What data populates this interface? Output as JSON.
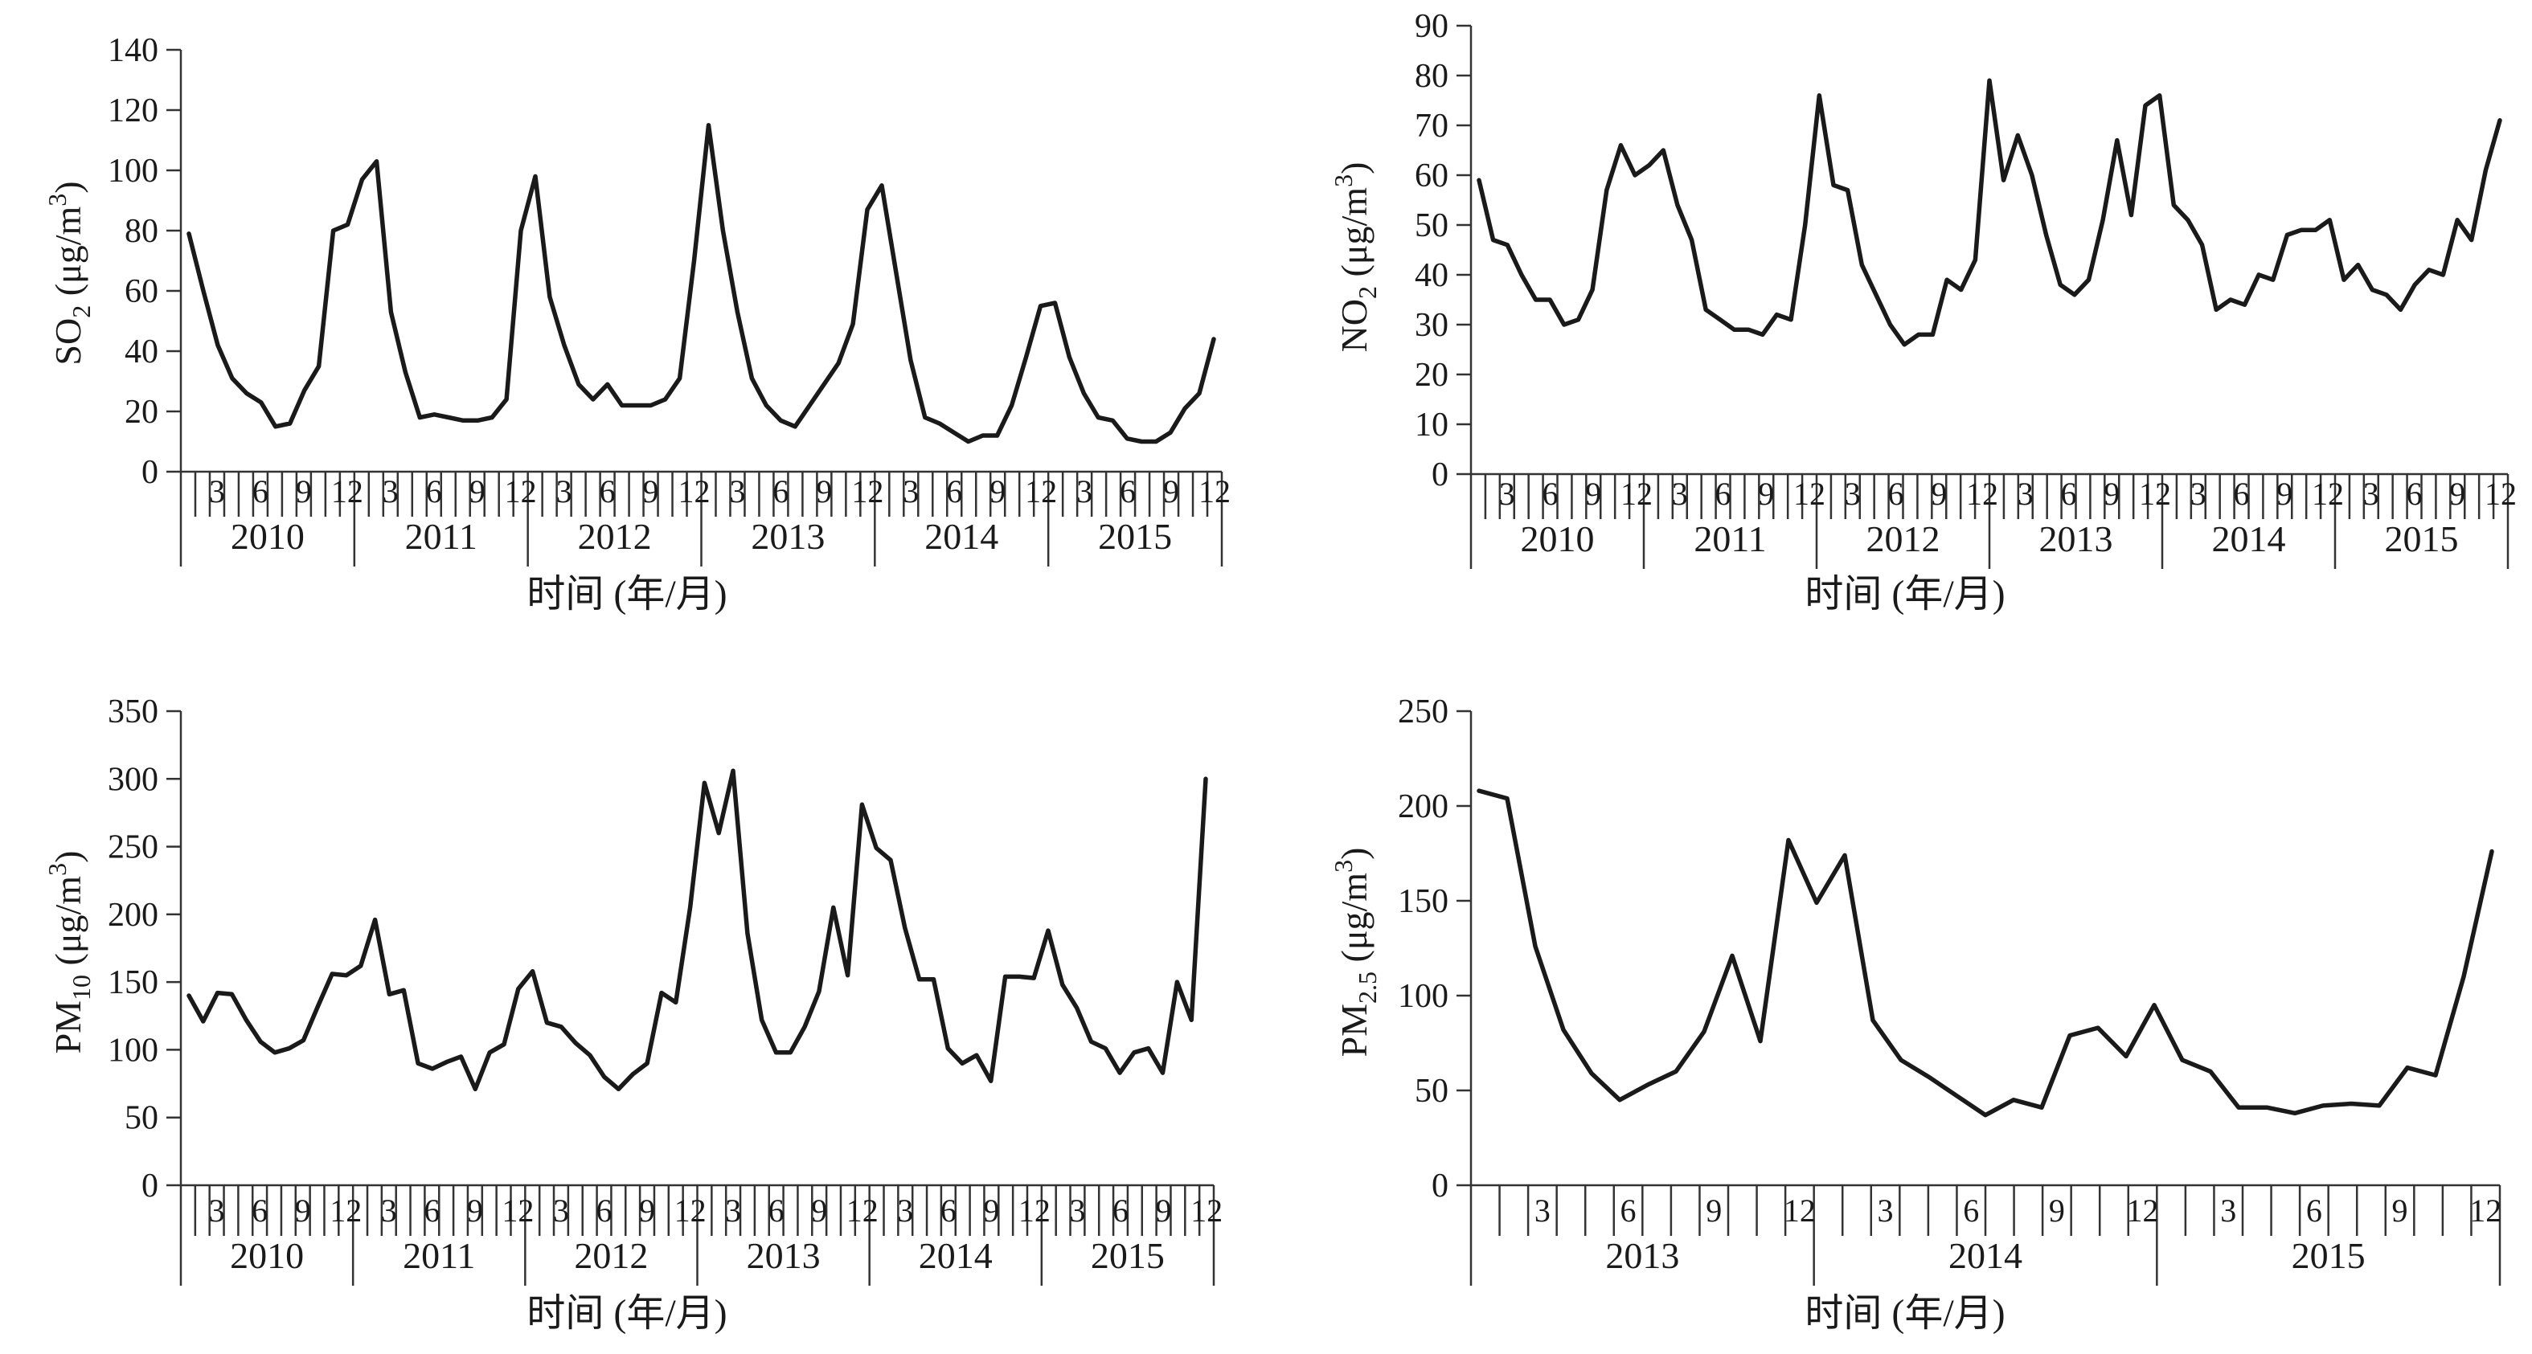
{
  "chart_data": [
    {
      "type": "line",
      "ylabel": "SO2 (μg/m3)",
      "ylabel_parts": {
        "main": "SO",
        "sub": "2",
        "unit": " (μg/m",
        "sup": "3",
        "close": ")"
      },
      "xlabel": "时间 (年/月)",
      "ylim": [
        0,
        140
      ],
      "yticks": [
        "0",
        "20",
        "40",
        "60",
        "80",
        "100",
        "120",
        "140"
      ],
      "years": [
        "2010",
        "2011",
        "2012",
        "2013",
        "2014",
        "2015"
      ],
      "month_labels": [
        "3",
        "6",
        "9",
        "12"
      ],
      "series": [
        {
          "values": [
            79,
            60,
            42,
            31,
            26,
            23,
            15,
            16,
            27,
            35,
            80,
            82,
            97,
            103,
            53,
            33,
            18,
            19,
            18,
            17,
            17,
            18,
            24,
            80,
            98,
            58,
            42,
            29,
            24,
            29,
            22,
            22,
            22,
            24,
            31,
            70,
            115,
            80,
            53,
            31,
            22,
            17,
            15,
            22,
            29,
            36,
            49,
            87,
            95,
            66,
            37,
            18,
            16,
            13,
            10,
            12,
            12,
            22,
            38,
            55,
            56,
            38,
            26,
            18,
            17,
            11,
            10,
            10,
            13,
            21,
            26,
            44
          ]
        }
      ]
    },
    {
      "type": "line",
      "ylabel": "NO2 (μg/m3)",
      "ylabel_parts": {
        "main": "NO",
        "sub": "2",
        "unit": " (μg/m",
        "sup": "3",
        "close": ")"
      },
      "xlabel": "时间 (年/月)",
      "ylim": [
        0,
        90
      ],
      "yticks": [
        "0",
        "10",
        "20",
        "30",
        "40",
        "50",
        "60",
        "70",
        "80",
        "90"
      ],
      "years": [
        "2010",
        "2011",
        "2012",
        "2013",
        "2014",
        "2015"
      ],
      "month_labels": [
        "3",
        "6",
        "9",
        "12"
      ],
      "series": [
        {
          "values": [
            59,
            47,
            46,
            40,
            35,
            35,
            30,
            31,
            37,
            57,
            66,
            60,
            62,
            65,
            54,
            47,
            33,
            31,
            29,
            29,
            28,
            32,
            31,
            50,
            76,
            58,
            57,
            42,
            36,
            30,
            26,
            28,
            28,
            39,
            37,
            43,
            79,
            59,
            68,
            60,
            48,
            38,
            36,
            39,
            51,
            67,
            52,
            74,
            76,
            54,
            51,
            46,
            33,
            35,
            34,
            40,
            39,
            48,
            49,
            49,
            51,
            39,
            42,
            37,
            36,
            33,
            38,
            41,
            40,
            51,
            47,
            61,
            71
          ]
        }
      ]
    },
    {
      "type": "line",
      "ylabel": "PM10 (μg/m3)",
      "ylabel_parts": {
        "main": "PM",
        "sub": "10",
        "unit": " (μg/m",
        "sup": "3",
        "close": ")"
      },
      "xlabel": "时间 (年/月)",
      "ylim": [
        0,
        350
      ],
      "yticks": [
        "0",
        "50",
        "100",
        "150",
        "200",
        "250",
        "300",
        "350"
      ],
      "years": [
        "2010",
        "2011",
        "2012",
        "2013",
        "2014",
        "2015"
      ],
      "month_labels": [
        "3",
        "6",
        "9",
        "12"
      ],
      "series": [
        {
          "values": [
            140,
            121,
            142,
            141,
            122,
            106,
            98,
            101,
            107,
            132,
            156,
            155,
            162,
            196,
            141,
            144,
            90,
            86,
            91,
            95,
            71,
            98,
            104,
            145,
            158,
            120,
            117,
            105,
            96,
            80,
            71,
            82,
            90,
            142,
            135,
            205,
            297,
            260,
            306,
            186,
            122,
            98,
            98,
            117,
            143,
            205,
            155,
            281,
            249,
            240,
            190,
            152,
            152,
            101,
            90,
            96,
            77,
            154,
            154,
            153,
            188,
            148,
            131,
            106,
            101,
            83,
            98,
            101,
            83,
            150,
            122,
            300
          ]
        }
      ]
    },
    {
      "type": "line",
      "ylabel": "PM2.5 (μg/m3)",
      "ylabel_parts": {
        "main": "PM",
        "sub": "2.5",
        "unit": " (μg/m",
        "sup": "3",
        "close": ")"
      },
      "xlabel": "时间 (年/月)",
      "ylim": [
        0,
        250
      ],
      "yticks": [
        "0",
        "50",
        "100",
        "150",
        "200",
        "250"
      ],
      "years": [
        "2013",
        "2014",
        "2015"
      ],
      "month_labels": [
        "3",
        "6",
        "9",
        "12"
      ],
      "series": [
        {
          "values": [
            208,
            204,
            126,
            82,
            59,
            45,
            53,
            60,
            81,
            121,
            76,
            182,
            149,
            174,
            87,
            66,
            57,
            47,
            37,
            45,
            41,
            79,
            83,
            68,
            95,
            66,
            60,
            41,
            41,
            38,
            42,
            43,
            42,
            62,
            58,
            110,
            176
          ]
        }
      ]
    }
  ]
}
